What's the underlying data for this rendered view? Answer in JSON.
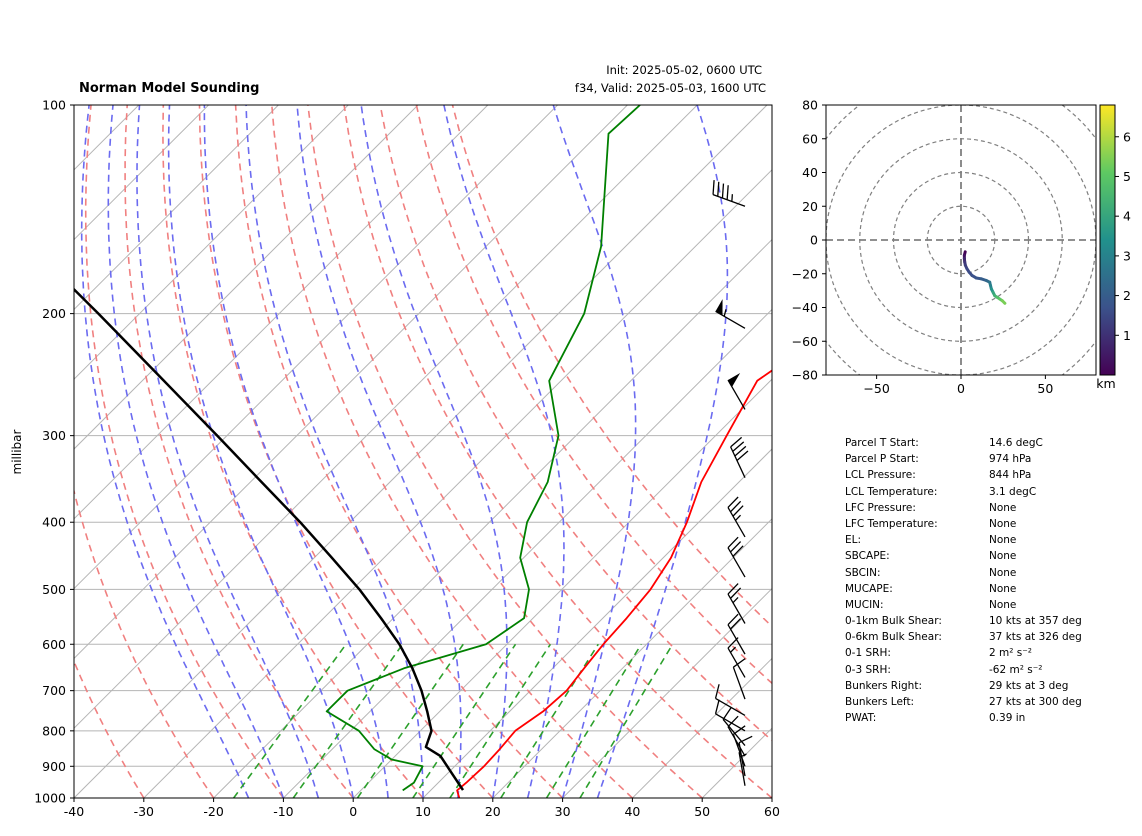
{
  "header": {
    "title": "Norman Model Sounding",
    "init": "Init: 2025-05-02, 0600 UTC",
    "valid": "f34, Valid: 2025-05-03, 1600 UTC"
  },
  "chart_data": [
    {
      "type": "line",
      "subtype": "skew-t",
      "xlabel": "",
      "ylabel": "millibar",
      "x_ticks": [
        "-40",
        "-30",
        "-20",
        "-10",
        "0",
        "10",
        "20",
        "30",
        "40",
        "50",
        "60"
      ],
      "y_ticks": [
        "100",
        "200",
        "300",
        "400",
        "500",
        "600",
        "700",
        "800",
        "900",
        "1000"
      ],
      "xlim": [
        -40,
        60
      ],
      "ylim": [
        1000,
        100
      ],
      "y_scale": "log",
      "grid": true,
      "series": [
        {
          "role": "temperature",
          "color": "#ff0000",
          "points": [
            [
              15.2,
              1000
            ],
            [
              13.8,
              975
            ],
            [
              14.0,
              950
            ],
            [
              14.2,
              900
            ],
            [
              14.0,
              850
            ],
            [
              13.6,
              800
            ],
            [
              14.8,
              750
            ],
            [
              15.2,
              700
            ],
            [
              14.5,
              650
            ],
            [
              13.8,
              600
            ],
            [
              13.4,
              550
            ],
            [
              12.7,
              500
            ],
            [
              11.1,
              450
            ],
            [
              8.3,
              400
            ],
            [
              4.6,
              350
            ],
            [
              1.6,
              300
            ],
            [
              -1.9,
              250
            ],
            [
              0.5,
              220
            ],
            [
              8.0,
              180
            ],
            [
              24.5,
              130
            ],
            [
              40.4,
              100
            ]
          ]
        },
        {
          "role": "dewpoint",
          "color": "#008000",
          "points": [
            [
              6.0,
              975
            ],
            [
              6.5,
              950
            ],
            [
              5.4,
              900
            ],
            [
              0.0,
              880
            ],
            [
              -4.0,
              850
            ],
            [
              -8.8,
              800
            ],
            [
              -16.2,
              750
            ],
            [
              -16.2,
              700
            ],
            [
              -11.3,
              650
            ],
            [
              -3.0,
              600
            ],
            [
              -1.3,
              550
            ],
            [
              -4.7,
              500
            ],
            [
              -10.5,
              450
            ],
            [
              -14.6,
              400
            ],
            [
              -17.4,
              350
            ],
            [
              -22.5,
              300
            ],
            [
              -31.7,
              250
            ],
            [
              -36.3,
              200
            ],
            [
              -43.5,
              160
            ],
            [
              -58.6,
              110
            ],
            [
              -58.2,
              100
            ]
          ]
        },
        {
          "role": "parcel",
          "color": "#000000",
          "points": [
            [
              14.6,
              974
            ],
            [
              10.5,
              920
            ],
            [
              6.5,
              870
            ],
            [
              3.1,
              844
            ],
            [
              1.6,
              800
            ],
            [
              -1.8,
              750
            ],
            [
              -5.6,
              700
            ],
            [
              -10.1,
              650
            ],
            [
              -15.4,
              600
            ],
            [
              -21.8,
              550
            ],
            [
              -29.0,
              500
            ],
            [
              -37.5,
              450
            ],
            [
              -47.1,
              400
            ],
            [
              -58.4,
              350
            ],
            [
              -71.4,
              300
            ],
            [
              -86.9,
              250
            ],
            [
              -105.9,
              200
            ],
            [
              -130.8,
              150
            ],
            [
              -150.8,
              120
            ],
            [
              -165.0,
              100
            ]
          ]
        }
      ],
      "wind_barbs": [
        {
          "pressure": 140,
          "speed_kts": 45,
          "dir_deg": 290
        },
        {
          "pressure": 210,
          "speed_kts": 55,
          "dir_deg": 300
        },
        {
          "pressure": 275,
          "speed_kts": 50,
          "dir_deg": 330
        },
        {
          "pressure": 345,
          "speed_kts": 40,
          "dir_deg": 335
        },
        {
          "pressure": 420,
          "speed_kts": 35,
          "dir_deg": 330
        },
        {
          "pressure": 480,
          "speed_kts": 30,
          "dir_deg": 330
        },
        {
          "pressure": 560,
          "speed_kts": 25,
          "dir_deg": 330
        },
        {
          "pressure": 620,
          "speed_kts": 20,
          "dir_deg": 330
        },
        {
          "pressure": 670,
          "speed_kts": 15,
          "dir_deg": 330
        },
        {
          "pressure": 720,
          "speed_kts": 10,
          "dir_deg": 340
        },
        {
          "pressure": 760,
          "speed_kts": 10,
          "dir_deg": 300
        },
        {
          "pressure": 800,
          "speed_kts": 10,
          "dir_deg": 300
        },
        {
          "pressure": 840,
          "speed_kts": 10,
          "dir_deg": 320
        },
        {
          "pressure": 870,
          "speed_kts": 10,
          "dir_deg": 330
        },
        {
          "pressure": 900,
          "speed_kts": 10,
          "dir_deg": 340
        },
        {
          "pressure": 930,
          "speed_kts": 10,
          "dir_deg": 350
        },
        {
          "pressure": 960,
          "speed_kts": 5,
          "dir_deg": 350
        }
      ],
      "reference_lines": {
        "dry_adiabats_C": [
          -30,
          -20,
          -10,
          0,
          10,
          20,
          30,
          40,
          50,
          60,
          70,
          80,
          90
        ],
        "moist_adiabats_C": [
          -15,
          -10,
          -5,
          0,
          5,
          10,
          15,
          20,
          25,
          30,
          35
        ],
        "mixing_ratios": [
          0.001,
          0.002,
          0.004,
          0.007,
          0.01,
          0.016,
          0.024,
          0.032
        ],
        "dry_adiabat_color": "#f08080",
        "moist_adiabat_color": "#6b6bf0",
        "mixing_ratio_color": "#2ca02c"
      }
    },
    {
      "type": "line",
      "subtype": "hodograph",
      "xlabel": "",
      "ylabel": "",
      "x_ticks": [
        "−50",
        "0",
        "50"
      ],
      "y_ticks": [
        "80",
        "60",
        "40",
        "20",
        "0",
        "−20",
        "−40",
        "−60",
        "−80"
      ],
      "xlim": [
        -80,
        80
      ],
      "ylim": [
        -80,
        80
      ],
      "rings": [
        20,
        40,
        60,
        80,
        100
      ],
      "points": [
        [
          2.5,
          -7
        ],
        [
          2,
          -9
        ],
        [
          2,
          -11
        ],
        [
          2.2,
          -13
        ],
        [
          2.6,
          -15
        ],
        [
          3.5,
          -17
        ],
        [
          4.8,
          -19
        ],
        [
          6.5,
          -21
        ],
        [
          9,
          -22.5
        ],
        [
          12,
          -23
        ],
        [
          15,
          -24
        ],
        [
          17,
          -25
        ],
        [
          17.5,
          -27
        ],
        [
          18,
          -29
        ],
        [
          19,
          -31
        ],
        [
          20,
          -33
        ],
        [
          21.5,
          -34
        ],
        [
          23,
          -35
        ],
        [
          24.5,
          -36
        ],
        [
          26,
          -37.5
        ]
      ],
      "heights_km": [
        0.05,
        0.4,
        0.8,
        1.1,
        1.3,
        1.5,
        1.6,
        1.7,
        1.8,
        2.0,
        2.3,
        2.7,
        3.0,
        3.5,
        4.0,
        4.4,
        4.8,
        5.1,
        5.4,
        5.7
      ],
      "colorbar": {
        "label": "km",
        "ticks": [
          "1",
          "2",
          "3",
          "4",
          "5",
          "6"
        ],
        "min": 0,
        "max": 6.8
      }
    }
  ],
  "params": [
    {
      "label": "Parcel T Start:",
      "value": "14.6 degC"
    },
    {
      "label": "Parcel P Start:",
      "value": "974 hPa"
    },
    {
      "label": "LCL Pressure:",
      "value": "844 hPa"
    },
    {
      "label": "LCL Temperature:",
      "value": "3.1 degC"
    },
    {
      "label": "LFC Pressure:",
      "value": "None"
    },
    {
      "label": "LFC Temperature:",
      "value": "None"
    },
    {
      "label": "EL:",
      "value": "None"
    },
    {
      "label": "SBCAPE:",
      "value": "None"
    },
    {
      "label": "SBCIN:",
      "value": "None"
    },
    {
      "label": "MUCAPE:",
      "value": "None"
    },
    {
      "label": "MUCIN:",
      "value": "None"
    },
    {
      "label": "0-1km Bulk Shear:",
      "value": "10 kts at 357 deg"
    },
    {
      "label": "0-6km Bulk Shear:",
      "value": "37 kts at 326 deg"
    },
    {
      "label": "0-1 SRH:",
      "value": "2 m² s⁻²"
    },
    {
      "label": "0-3 SRH:",
      "value": "-62 m² s⁻²"
    },
    {
      "label": "Bunkers Right:",
      "value": "29 kts at 3 deg"
    },
    {
      "label": "Bunkers Left:",
      "value": "27 kts at 300 deg"
    },
    {
      "label": "PWAT:",
      "value": "0.39 in"
    }
  ]
}
